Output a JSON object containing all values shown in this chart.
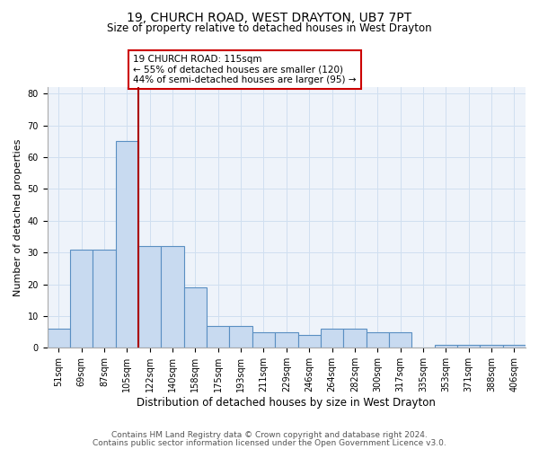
{
  "title1": "19, CHURCH ROAD, WEST DRAYTON, UB7 7PT",
  "title2": "Size of property relative to detached houses in West Drayton",
  "xlabel": "Distribution of detached houses by size in West Drayton",
  "ylabel": "Number of detached properties",
  "bin_labels": [
    "51sqm",
    "69sqm",
    "87sqm",
    "105sqm",
    "122sqm",
    "140sqm",
    "158sqm",
    "175sqm",
    "193sqm",
    "211sqm",
    "229sqm",
    "246sqm",
    "264sqm",
    "282sqm",
    "300sqm",
    "317sqm",
    "335sqm",
    "353sqm",
    "371sqm",
    "388sqm",
    "406sqm"
  ],
  "bar_heights": [
    6,
    31,
    31,
    65,
    32,
    32,
    19,
    7,
    7,
    5,
    5,
    4,
    6,
    6,
    5,
    5,
    0,
    1,
    1,
    1,
    1
  ],
  "bar_color": "#c8daf0",
  "bar_edge_color": "#5a8fc2",
  "vline_x": 3.5,
  "vline_color": "#aa0000",
  "annotation_text": "19 CHURCH ROAD: 115sqm\n← 55% of detached houses are smaller (120)\n44% of semi-detached houses are larger (95) →",
  "annotation_box_color": "white",
  "annotation_box_edge": "#cc0000",
  "ylim": [
    0,
    82
  ],
  "yticks": [
    0,
    10,
    20,
    30,
    40,
    50,
    60,
    70,
    80
  ],
  "grid_color": "#d0dff0",
  "bg_color": "#eef3fa",
  "footer1": "Contains HM Land Registry data © Crown copyright and database right 2024.",
  "footer2": "Contains public sector information licensed under the Open Government Licence v3.0.",
  "title1_fontsize": 10,
  "title2_fontsize": 8.5,
  "xlabel_fontsize": 8.5,
  "ylabel_fontsize": 8,
  "tick_fontsize": 7,
  "footer_fontsize": 6.5,
  "annot_fontsize": 7.5
}
